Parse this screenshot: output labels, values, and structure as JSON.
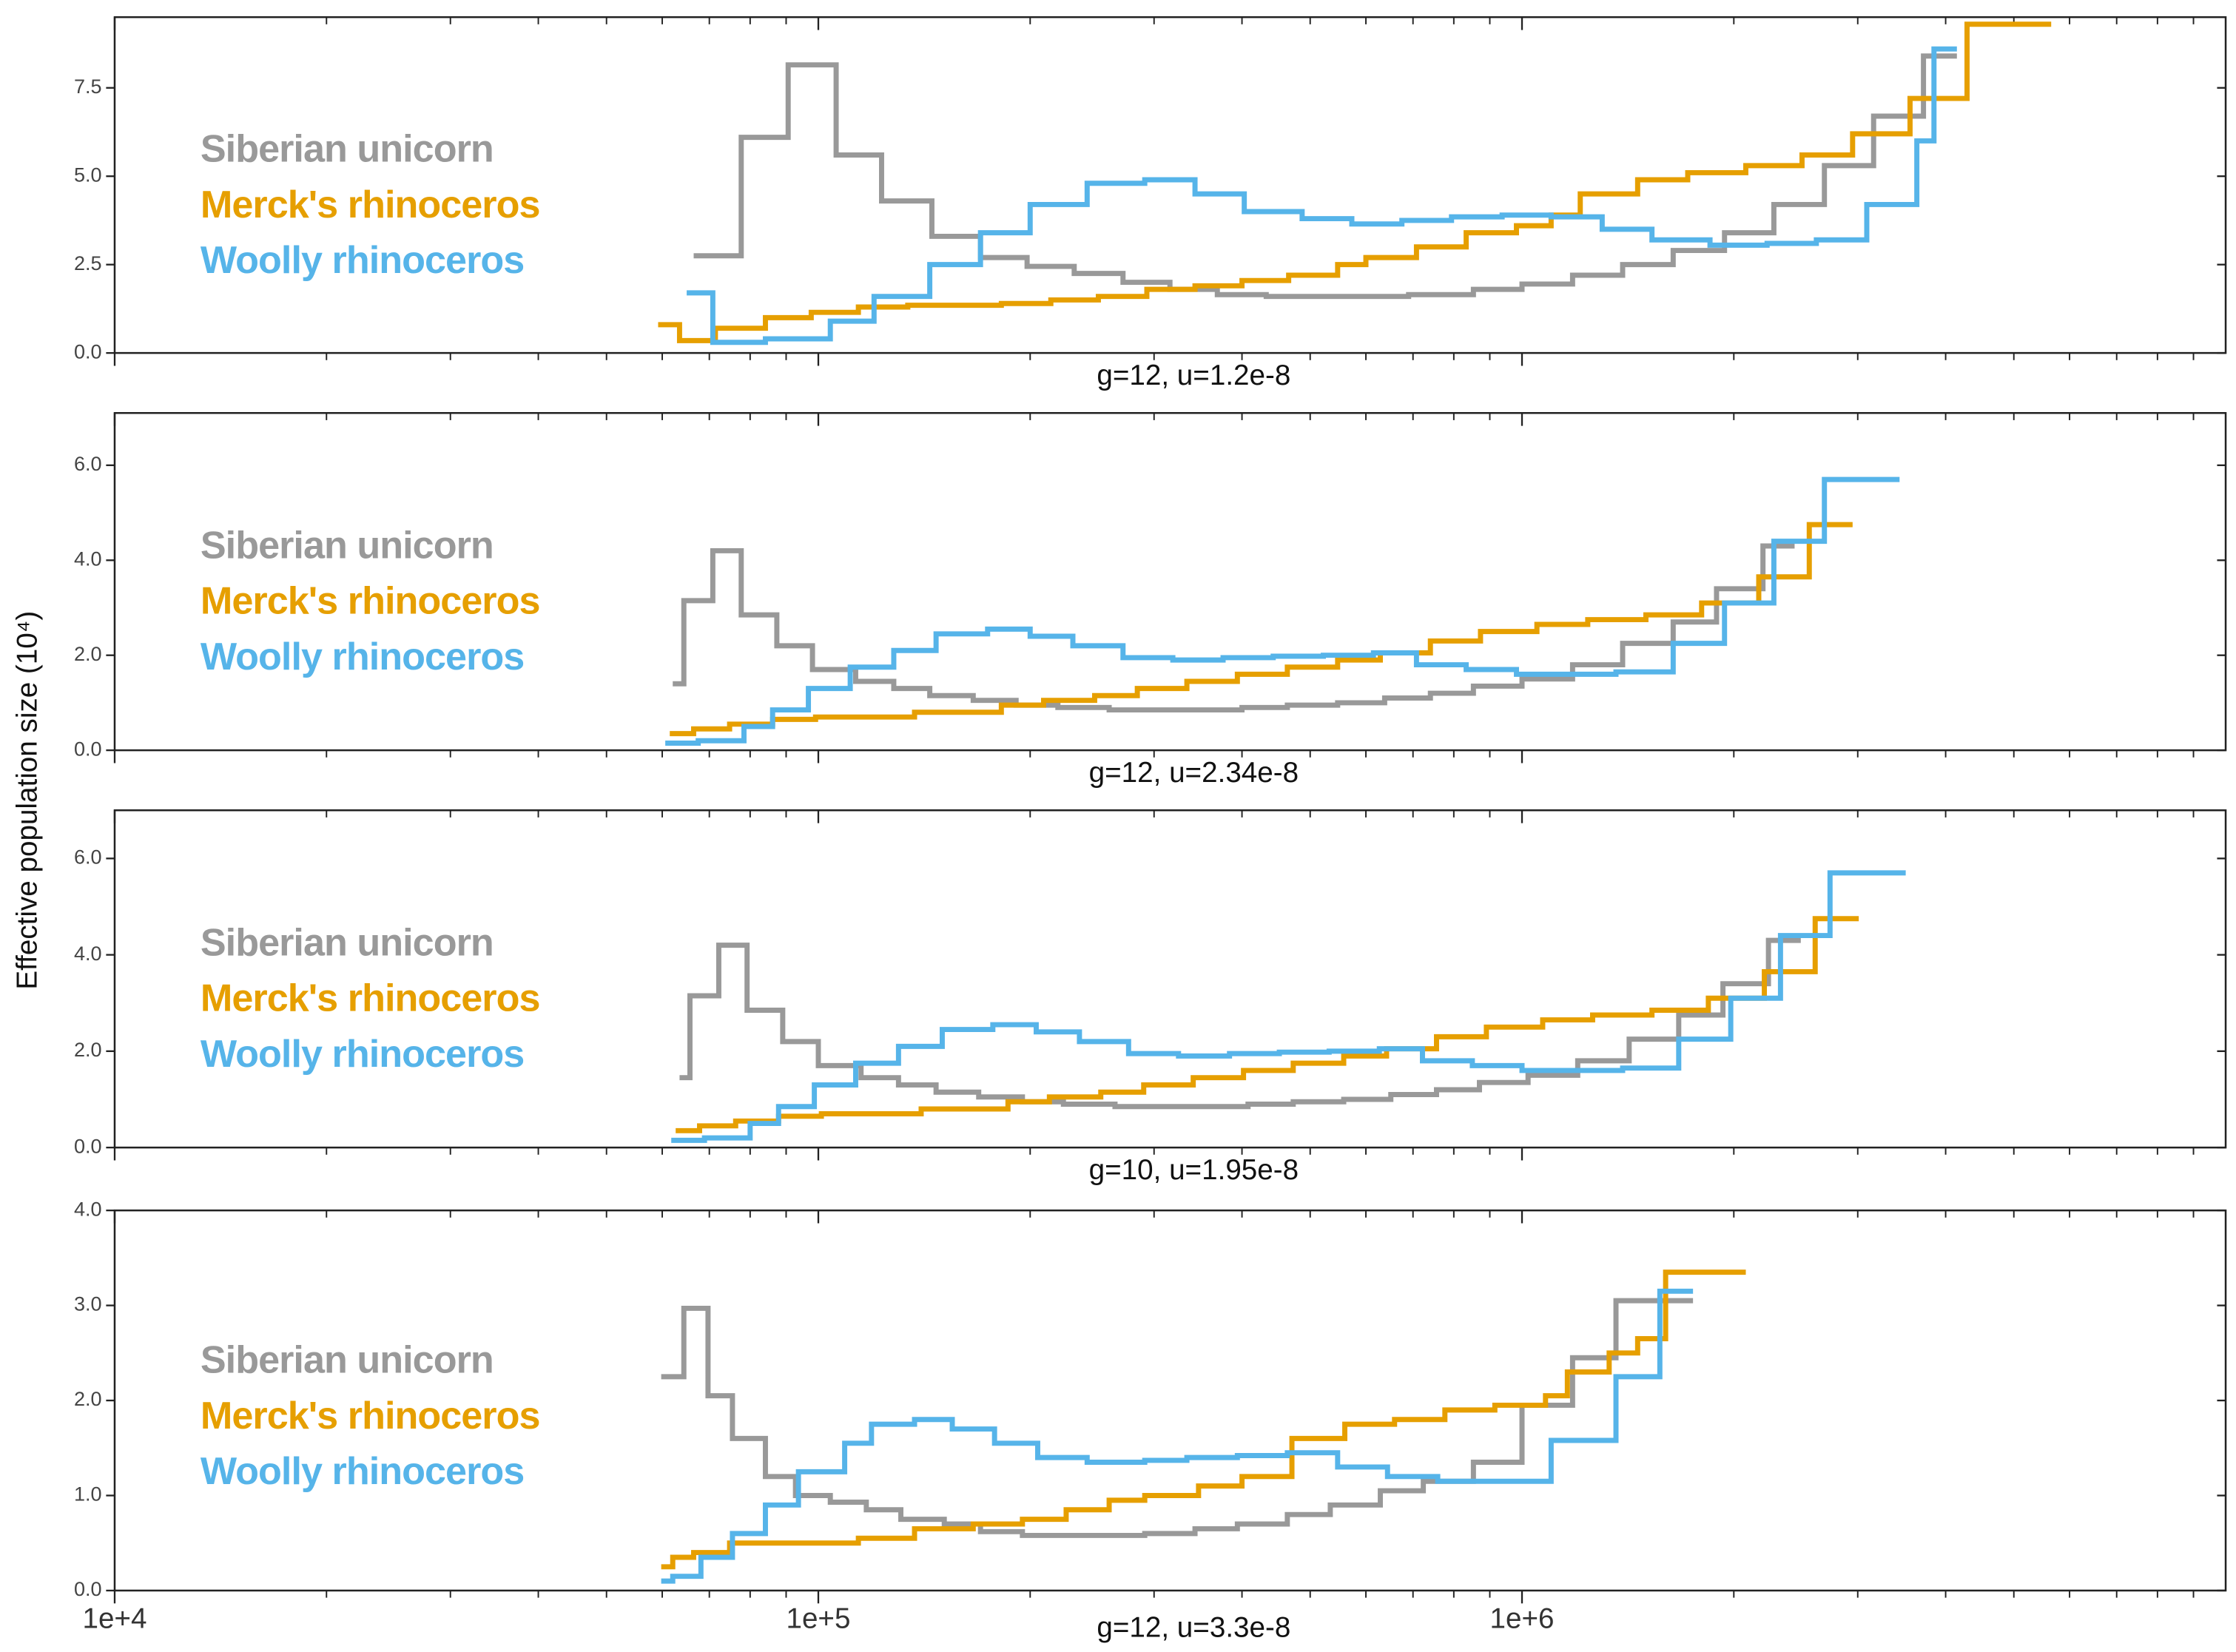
{
  "chart_data": [
    {
      "type": "line",
      "step": "post",
      "log_x": true,
      "xlabel": "g=12, u=1.2e-8",
      "xlim": [
        10000,
        10000000
      ],
      "xticks": [
        10000,
        100000,
        1000000
      ],
      "xtick_labels": false,
      "xminor": [
        20000,
        30000,
        40000,
        50000,
        60000,
        70000,
        80000,
        90000,
        200000,
        300000,
        400000,
        500000,
        600000,
        700000,
        800000,
        900000,
        2000000,
        3000000,
        4000000,
        5000000,
        6000000,
        7000000,
        8000000,
        9000000
      ],
      "ylim": [
        0,
        9.5
      ],
      "yticks": [
        {
          "value": 0,
          "label": "0.0"
        },
        2.5,
        {
          "value": 5,
          "label": "5.0"
        },
        7.5
      ],
      "series": [
        {
          "name": "Siberian unicorn",
          "color": "#999999",
          "x": [
            66500,
            77700,
            90600,
            106000,
            123000,
            145000,
            170000,
            198000,
            231000,
            271000,
            316000,
            369000,
            433000,
            589000,
            690000,
            853000,
            1000000,
            1180000,
            1390000,
            1640000,
            1940000,
            2280000,
            2690000,
            3160000,
            3720000,
            4150000
          ],
          "values": [
            2.75,
            6.1,
            8.15,
            5.6,
            4.3,
            3.3,
            2.7,
            2.45,
            2.25,
            2.0,
            1.8,
            1.65,
            1.6,
            1.6,
            1.65,
            1.8,
            1.95,
            2.2,
            2.5,
            2.9,
            3.4,
            4.2,
            5.3,
            6.7,
            8.4,
            8.4
          ]
        },
        {
          "name": "Merck's rhinoceros",
          "color": "#E69F00",
          "x": [
            59200,
            63500,
            71400,
            84100,
            97700,
            114000,
            134000,
            182000,
            214000,
            250000,
            293000,
            343000,
            400000,
            466000,
            547000,
            600000,
            708000,
            833000,
            982000,
            1100000,
            1210000,
            1460000,
            1720000,
            2080000,
            2500000,
            2950000,
            3560000,
            4290000,
            5650000
          ],
          "values": [
            0.8,
            0.35,
            0.7,
            1.0,
            1.15,
            1.3,
            1.35,
            1.4,
            1.5,
            1.6,
            1.8,
            1.9,
            2.05,
            2.2,
            2.5,
            2.7,
            3.0,
            3.4,
            3.6,
            3.9,
            4.5,
            4.9,
            5.1,
            5.3,
            5.6,
            6.2,
            7.2,
            9.3,
            9.3
          ]
        },
        {
          "name": "Woolly rhinoceros",
          "color": "#56B4E9",
          "x": [
            65000,
            70800,
            84100,
            104000,
            120000,
            144000,
            170000,
            200000,
            241000,
            291000,
            343000,
            403000,
            487000,
            573000,
            675000,
            794000,
            937000,
            1100000,
            1300000,
            1530000,
            1850000,
            2230000,
            2620000,
            3090000,
            3640000,
            3850000,
            4150000
          ],
          "values": [
            1.7,
            0.3,
            0.4,
            0.9,
            1.6,
            2.5,
            3.4,
            4.2,
            4.8,
            4.9,
            4.5,
            4.0,
            3.8,
            3.65,
            3.75,
            3.85,
            3.9,
            3.85,
            3.5,
            3.2,
            3.05,
            3.1,
            3.2,
            4.2,
            6.0,
            8.6,
            8.6
          ]
        }
      ]
    },
    {
      "type": "line",
      "step": "post",
      "log_x": true,
      "xlabel": "g=12, u=2.34e-8",
      "ylabel": "Effective population size (10⁴)",
      "xlim": [
        10000,
        10000000
      ],
      "xticks": [
        10000,
        100000,
        1000000
      ],
      "xtick_labels": false,
      "xminor": [
        20000,
        30000,
        40000,
        50000,
        60000,
        70000,
        80000,
        90000,
        200000,
        300000,
        400000,
        500000,
        600000,
        700000,
        800000,
        900000,
        2000000,
        3000000,
        4000000,
        5000000,
        6000000,
        7000000,
        8000000,
        9000000
      ],
      "ylim": [
        0,
        7.1
      ],
      "yticks": [
        {
          "value": 0,
          "label": "0.0"
        },
        {
          "value": 2,
          "label": "2.0"
        },
        {
          "value": 4,
          "label": "4.0"
        },
        {
          "value": 6,
          "label": "6.0"
        }
      ],
      "series": [
        {
          "name": "Siberian unicorn",
          "color": "#999999",
          "x": [
            62100,
            64400,
            70800,
            77700,
            87300,
            98100,
            113000,
            128000,
            144000,
            166000,
            191000,
            219000,
            259000,
            343000,
            400000,
            464000,
            547000,
            638000,
            741000,
            853000,
            1000000,
            1180000,
            1390000,
            1640000,
            1890000,
            2200000,
            2440000
          ],
          "values": [
            1.4,
            3.15,
            4.2,
            2.85,
            2.2,
            1.7,
            1.45,
            1.3,
            1.15,
            1.05,
            0.95,
            0.9,
            0.85,
            0.85,
            0.9,
            0.95,
            1.0,
            1.1,
            1.2,
            1.35,
            1.5,
            1.8,
            2.25,
            2.7,
            3.4,
            4.3,
            4.3
          ]
        },
        {
          "name": "Merck's rhinoceros",
          "color": "#E69F00",
          "x": [
            61500,
            66500,
            74800,
            86100,
            99100,
            137000,
            182000,
            209000,
            247000,
            284000,
            334000,
            394000,
            464000,
            547000,
            629000,
            741000,
            873000,
            1050000,
            1240000,
            1500000,
            1800000,
            2170000,
            2560000,
            2950000
          ],
          "values": [
            0.35,
            0.45,
            0.55,
            0.65,
            0.7,
            0.8,
            0.95,
            1.05,
            1.15,
            1.3,
            1.45,
            1.6,
            1.75,
            1.9,
            2.05,
            2.3,
            2.5,
            2.65,
            2.75,
            2.85,
            3.1,
            3.65,
            4.75,
            4.75
          ]
        },
        {
          "name": "Woolly rhinoceros",
          "color": "#56B4E9",
          "x": [
            60600,
            67500,
            78400,
            86100,
            96800,
            111000,
            128000,
            147000,
            174000,
            200000,
            230000,
            271000,
            319000,
            376000,
            443000,
            522000,
            615000,
            708000,
            833000,
            982000,
            1160000,
            1360000,
            1640000,
            1940000,
            2280000,
            2690000,
            3440000
          ],
          "values": [
            0.15,
            0.2,
            0.5,
            0.85,
            1.3,
            1.75,
            2.1,
            2.45,
            2.55,
            2.4,
            2.2,
            1.95,
            1.9,
            1.95,
            1.98,
            2.0,
            2.05,
            1.8,
            1.7,
            1.6,
            1.6,
            1.65,
            2.25,
            3.1,
            4.4,
            5.7,
            5.7
          ]
        }
      ]
    },
    {
      "type": "line",
      "step": "post",
      "log_x": true,
      "xlabel": "g=10, u=1.95e-8",
      "xlim": [
        10000,
        10000000
      ],
      "xticks": [
        10000,
        100000,
        1000000
      ],
      "xtick_labels": false,
      "xminor": [
        20000,
        30000,
        40000,
        50000,
        60000,
        70000,
        80000,
        90000,
        200000,
        300000,
        400000,
        500000,
        600000,
        700000,
        800000,
        900000,
        2000000,
        3000000,
        4000000,
        5000000,
        6000000,
        7000000,
        8000000,
        9000000
      ],
      "ylim": [
        0,
        7.0
      ],
      "yticks": [
        {
          "value": 0,
          "label": "0.0"
        },
        {
          "value": 2,
          "label": "2.0"
        },
        {
          "value": 4,
          "label": "4.0"
        },
        {
          "value": 6,
          "label": "6.0"
        }
      ],
      "series": [
        {
          "name": "Siberian unicorn",
          "color": "#999999",
          "x": [
            63500,
            65700,
            72200,
            79200,
            89000,
            100000,
            115000,
            130000,
            147000,
            169000,
            195000,
            223000,
            264000,
            350000,
            408000,
            473000,
            558000,
            651000,
            756000,
            870000,
            1020000,
            1200000,
            1420000,
            1670000,
            1930000,
            2240000,
            2490000
          ],
          "values": [
            1.45,
            3.15,
            4.2,
            2.85,
            2.2,
            1.7,
            1.45,
            1.3,
            1.15,
            1.05,
            0.95,
            0.9,
            0.85,
            0.85,
            0.9,
            0.95,
            1.0,
            1.1,
            1.2,
            1.35,
            1.5,
            1.8,
            2.25,
            2.75,
            3.4,
            4.3,
            4.3
          ]
        },
        {
          "name": "Merck's rhinoceros",
          "color": "#E69F00",
          "x": [
            62700,
            67800,
            76300,
            87800,
            101000,
            140000,
            186000,
            213000,
            252000,
            290000,
            341000,
            402000,
            473000,
            558000,
            642000,
            756000,
            890000,
            1070000,
            1260000,
            1530000,
            1840000,
            2210000,
            2610000,
            3010000
          ],
          "values": [
            0.35,
            0.45,
            0.55,
            0.65,
            0.7,
            0.8,
            0.95,
            1.05,
            1.15,
            1.3,
            1.45,
            1.6,
            1.75,
            1.9,
            2.05,
            2.3,
            2.5,
            2.65,
            2.75,
            2.85,
            3.1,
            3.65,
            4.75,
            4.75
          ]
        },
        {
          "name": "Woolly rhinoceros",
          "color": "#56B4E9",
          "x": [
            61800,
            68900,
            80000,
            87800,
            98700,
            113000,
            130000,
            150000,
            177000,
            204000,
            235000,
            276000,
            325000,
            384000,
            452000,
            532000,
            627000,
            722000,
            850000,
            1000000,
            1180000,
            1390000,
            1670000,
            1980000,
            2330000,
            2740000,
            3510000
          ],
          "values": [
            0.15,
            0.2,
            0.5,
            0.85,
            1.3,
            1.75,
            2.1,
            2.45,
            2.55,
            2.4,
            2.2,
            1.95,
            1.9,
            1.95,
            1.98,
            2.0,
            2.05,
            1.8,
            1.7,
            1.6,
            1.6,
            1.65,
            2.25,
            3.1,
            4.4,
            5.7,
            5.7
          ]
        }
      ]
    },
    {
      "type": "line",
      "step": "post",
      "log_x": true,
      "xlabel": "g=12, u=3.3e-8",
      "xlim": [
        10000,
        10000000
      ],
      "xticks": [
        {
          "value": 10000,
          "label": "1e+4"
        },
        {
          "value": 100000,
          "label": "1e+5"
        },
        {
          "value": 1000000,
          "label": "1e+6"
        }
      ],
      "xminor": [
        20000,
        30000,
        40000,
        50000,
        60000,
        70000,
        80000,
        90000,
        200000,
        300000,
        400000,
        500000,
        600000,
        700000,
        800000,
        900000,
        2000000,
        3000000,
        4000000,
        5000000,
        6000000,
        7000000,
        8000000,
        9000000
      ],
      "ylim": [
        0,
        4.0
      ],
      "yticks": [
        {
          "value": 0,
          "label": "0.0"
        },
        {
          "value": 1,
          "label": "1.0"
        },
        {
          "value": 2,
          "label": "2.0"
        },
        {
          "value": 3,
          "label": "3.0"
        },
        {
          "value": 4,
          "label": "4.0"
        }
      ],
      "series": [
        {
          "name": "Siberian unicorn",
          "color": "#999999",
          "x": [
            59800,
            64400,
            69700,
            75500,
            84100,
            92800,
            104000,
            117000,
            131000,
            151000,
            170000,
            195000,
            259000,
            291000,
            343000,
            394000,
            464000,
            534000,
            629000,
            724000,
            853000,
            1000000,
            1180000,
            1360000,
            1750000
          ],
          "values": [
            2.25,
            2.97,
            2.05,
            1.6,
            1.2,
            1.0,
            0.93,
            0.85,
            0.75,
            0.7,
            0.62,
            0.58,
            0.58,
            0.6,
            0.65,
            0.7,
            0.8,
            0.9,
            1.05,
            1.15,
            1.35,
            1.95,
            2.45,
            3.05,
            3.05
          ]
        },
        {
          "name": "Merck's rhinoceros",
          "color": "#E69F00",
          "x": [
            59800,
            62100,
            66500,
            74800,
            114000,
            137000,
            166000,
            195000,
            225000,
            259000,
            291000,
            347000,
            400000,
            471000,
            560000,
            659000,
            777000,
            915000,
            1080000,
            1160000,
            1330000,
            1460000,
            1600000,
            2080000
          ],
          "values": [
            0.25,
            0.35,
            0.4,
            0.5,
            0.55,
            0.65,
            0.7,
            0.75,
            0.85,
            0.95,
            1.0,
            1.1,
            1.2,
            1.6,
            1.75,
            1.8,
            1.9,
            1.95,
            2.05,
            2.3,
            2.5,
            2.65,
            3.35,
            3.35
          ]
        },
        {
          "name": "Woolly rhinoceros",
          "color": "#56B4E9",
          "x": [
            59800,
            62100,
            68100,
            75500,
            84100,
            93700,
            109000,
            119000,
            137000,
            155000,
            178000,
            205000,
            241000,
            291000,
            334000,
            394000,
            464000,
            547000,
            644000,
            759000,
            893000,
            1100000,
            1360000,
            1570000,
            1750000
          ],
          "values": [
            0.1,
            0.15,
            0.35,
            0.6,
            0.9,
            1.25,
            1.55,
            1.75,
            1.8,
            1.7,
            1.55,
            1.4,
            1.35,
            1.37,
            1.4,
            1.42,
            1.45,
            1.3,
            1.2,
            1.15,
            1.15,
            1.58,
            2.25,
            3.15,
            3.15
          ]
        }
      ]
    }
  ]
}
